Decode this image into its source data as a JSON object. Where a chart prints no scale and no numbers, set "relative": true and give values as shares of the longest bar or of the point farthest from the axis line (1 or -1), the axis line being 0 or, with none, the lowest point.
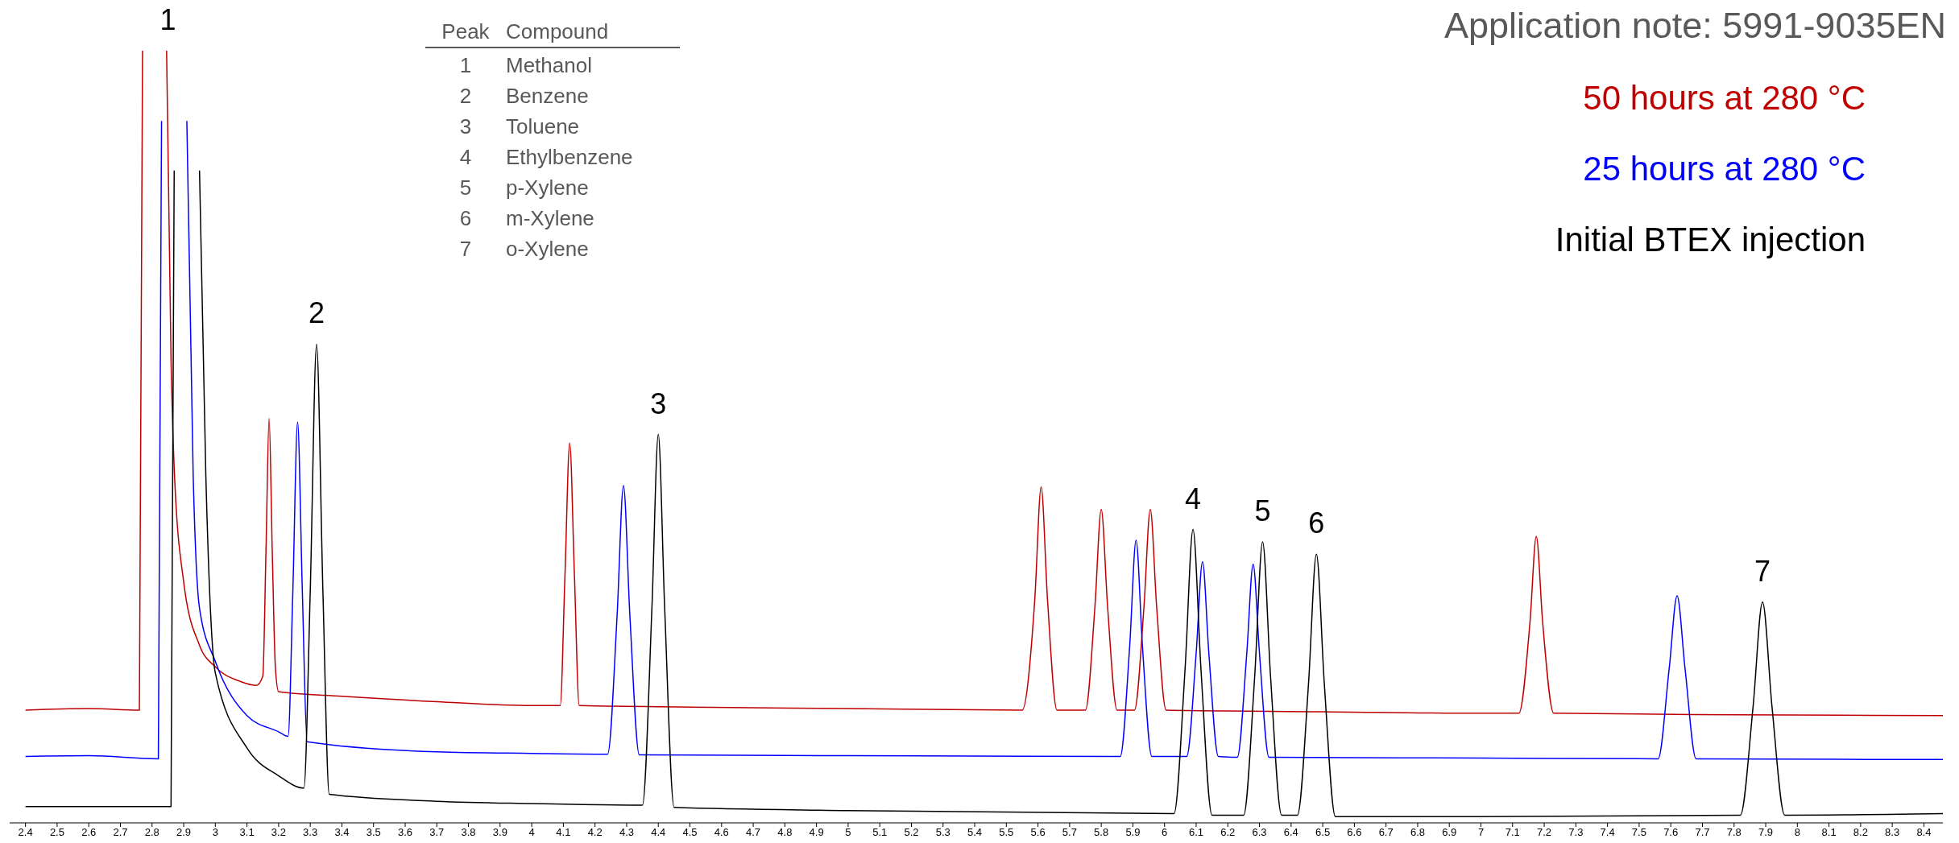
{
  "chart_data": {
    "type": "line",
    "title": "Application note: 5991-9035EN",
    "relative": true,
    "legend": "top right",
    "tick_labels": "x",
    "xlim": [
      2.35,
      8.46
    ],
    "xticks": [
      2.4,
      2.5,
      2.6,
      2.7,
      2.8,
      2.9,
      3,
      3.1,
      3.2,
      3.3,
      3.4,
      3.5,
      3.6,
      3.7,
      3.8,
      3.9,
      4,
      4.1,
      4.2,
      4.3,
      4.4,
      4.5,
      4.6,
      4.7,
      4.8,
      4.9,
      5,
      5.1,
      5.2,
      5.3,
      5.4,
      5.5,
      5.6,
      5.7,
      5.8,
      5.9,
      6,
      6.1,
      6.2,
      6.3,
      6.4,
      6.5,
      6.6,
      6.7,
      6.8,
      6.9,
      7,
      7.1,
      7.2,
      7.3,
      7.4,
      7.5,
      7.6,
      7.7,
      7.8,
      7.9,
      8,
      8.1,
      8.2,
      8.3,
      8.4
    ],
    "annotations": [
      {
        "text": "1",
        "x": 2.85,
        "y": 1.0
      },
      {
        "text": "2",
        "x": 3.32,
        "y": 0.62
      },
      {
        "text": "3",
        "x": 4.4,
        "y": 0.503
      },
      {
        "text": "4",
        "x": 6.09,
        "y": 0.38
      },
      {
        "text": "5",
        "x": 6.31,
        "y": 0.364
      },
      {
        "text": "6",
        "x": 6.48,
        "y": 0.348
      },
      {
        "text": "7",
        "x": 7.89,
        "y": 0.286
      },
      "Peak\tCompound",
      "1\tMethanol",
      "2\tBenzene",
      "3\tToluene",
      "4\tEthylbenzene",
      "5\tp-Xylene",
      "6\tm-Xylene",
      "7\to-Xylene"
    ],
    "series": [
      {
        "name": "50 hours at 280 °C",
        "color": "#c00000",
        "x": [
          2.4,
          2.6,
          2.76,
          2.77,
          2.78,
          2.846,
          2.86,
          2.87,
          2.9,
          2.95,
          3.0,
          3.08,
          3.13,
          3.15,
          3.16,
          3.17,
          3.18,
          3.19,
          3.2,
          3.4,
          3.7,
          4.0,
          4.09,
          4.105,
          4.12,
          4.135,
          4.15,
          4.5,
          5.0,
          5.55,
          5.59,
          5.61,
          5.63,
          5.66,
          5.75,
          5.78,
          5.8,
          5.82,
          5.85,
          5.905,
          5.935,
          5.955,
          5.975,
          6.005,
          6.5,
          7.0,
          7.12,
          7.155,
          7.175,
          7.195,
          7.23,
          7.8,
          8.46
        ],
        "values": [
          0.146,
          0.148,
          0.146,
          1.0,
          null,
          1.0,
          0.6,
          0.46,
          0.312,
          0.23,
          0.202,
          0.183,
          0.178,
          0.19,
          0.35,
          0.524,
          0.35,
          0.2,
          0.17,
          0.164,
          0.157,
          0.152,
          0.152,
          0.32,
          0.492,
          0.32,
          0.152,
          0.15,
          0.148,
          0.146,
          0.29,
          0.435,
          0.29,
          0.146,
          0.146,
          0.28,
          0.406,
          0.28,
          0.146,
          0.146,
          0.28,
          0.406,
          0.28,
          0.146,
          0.144,
          0.142,
          0.142,
          0.26,
          0.371,
          0.26,
          0.142,
          0.14,
          0.139
        ]
      },
      {
        "name": "25 hours at 280 °C",
        "color": "#0000ff",
        "x": [
          2.4,
          2.6,
          2.82,
          2.83,
          2.84,
          2.91,
          2.93,
          2.95,
          3.0,
          3.1,
          3.2,
          3.23,
          3.245,
          3.26,
          3.275,
          3.29,
          3.7,
          4.0,
          4.24,
          4.27,
          4.29,
          4.31,
          4.34,
          5.0,
          5.86,
          5.89,
          5.91,
          5.93,
          5.96,
          6.07,
          6.1,
          6.12,
          6.14,
          6.17,
          6.23,
          6.26,
          6.28,
          6.3,
          6.33,
          7.0,
          7.56,
          7.595,
          7.62,
          7.645,
          7.68,
          8.46
        ],
        "values": [
          0.086,
          0.087,
          0.083,
          0.909,
          null,
          0.909,
          0.45,
          0.278,
          0.209,
          0.139,
          0.118,
          0.112,
          0.3,
          0.519,
          0.3,
          0.105,
          0.092,
          0.09,
          0.089,
          0.27,
          0.437,
          0.27,
          0.088,
          0.087,
          0.086,
          0.23,
          0.366,
          0.23,
          0.086,
          0.086,
          0.22,
          0.338,
          0.22,
          0.086,
          0.085,
          0.22,
          0.335,
          0.22,
          0.085,
          0.084,
          0.083,
          0.2,
          0.294,
          0.2,
          0.083,
          0.082
        ]
      },
      {
        "name": "Initial BTEX injection",
        "color": "#000000",
        "x": [
          2.4,
          2.6,
          2.86,
          2.87,
          2.88,
          2.95,
          2.97,
          3.0,
          3.1,
          3.2,
          3.28,
          3.3,
          3.32,
          3.34,
          3.36,
          3.7,
          4.0,
          4.35,
          4.38,
          4.4,
          4.42,
          4.45,
          5.0,
          6.03,
          6.065,
          6.09,
          6.115,
          6.15,
          6.25,
          6.285,
          6.31,
          6.335,
          6.37,
          6.42,
          6.455,
          6.48,
          6.505,
          6.54,
          7.0,
          7.82,
          7.86,
          7.89,
          7.92,
          7.96,
          8.46
        ],
        "values": [
          0.021,
          0.021,
          0.021,
          0.845,
          null,
          0.845,
          0.45,
          0.194,
          0.097,
          0.061,
          0.045,
          0.3,
          0.62,
          0.3,
          0.037,
          0.028,
          0.025,
          0.023,
          0.28,
          0.503,
          0.28,
          0.02,
          0.016,
          0.012,
          0.2,
          0.38,
          0.2,
          0.01,
          0.01,
          0.19,
          0.364,
          0.19,
          0.01,
          0.01,
          0.18,
          0.348,
          0.18,
          0.008,
          0.008,
          0.01,
          0.15,
          0.286,
          0.15,
          0.01,
          0.012
        ]
      }
    ]
  }
}
